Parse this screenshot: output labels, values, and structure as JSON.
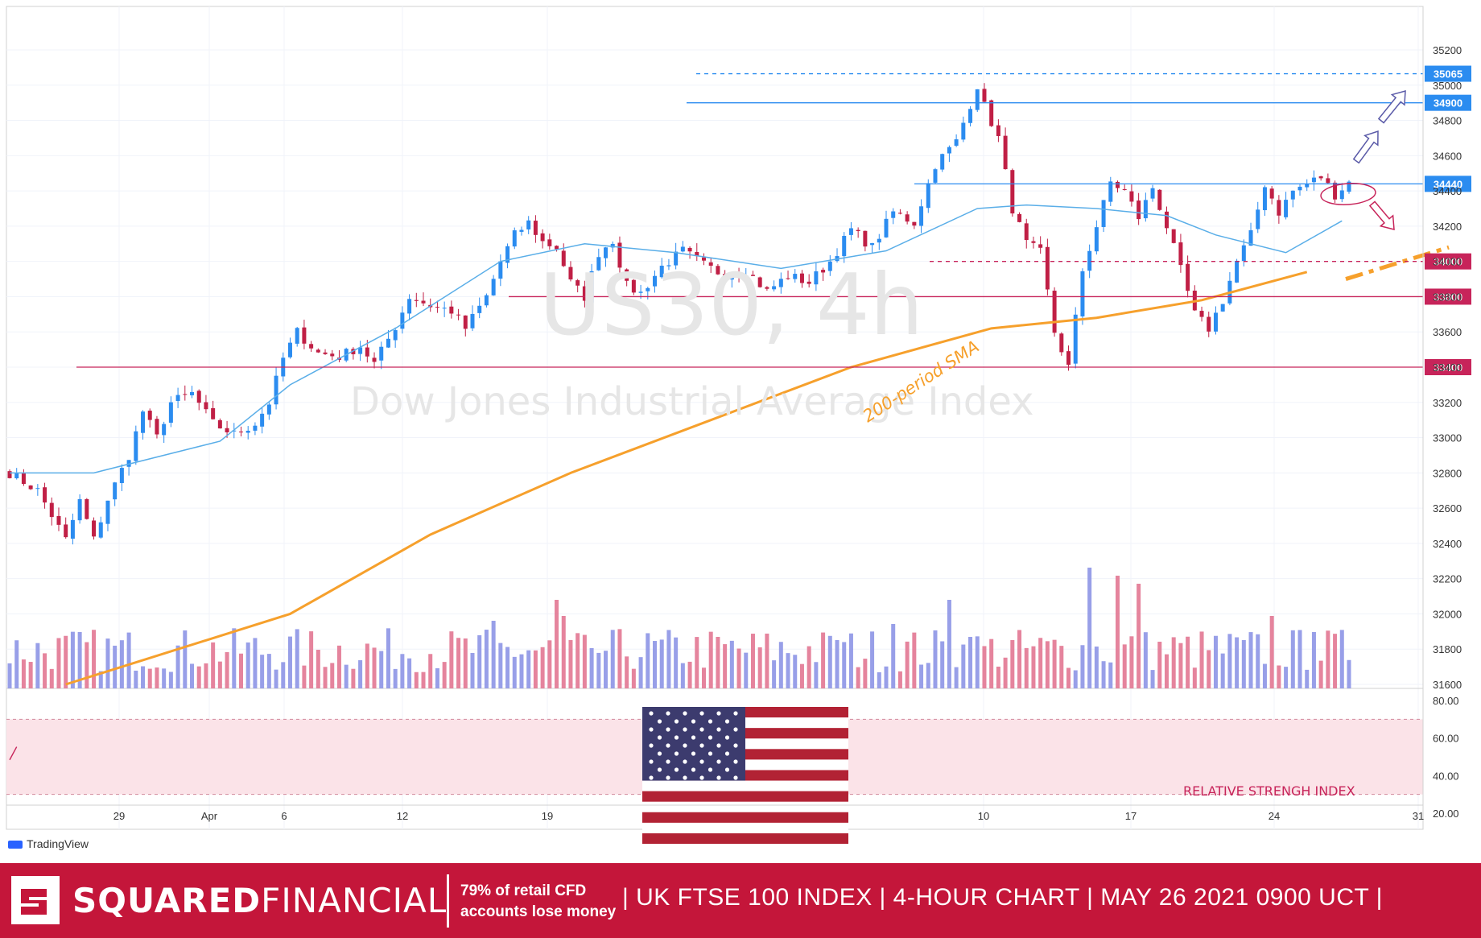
{
  "watermark": {
    "symbol": "US30, 4h",
    "name": "Dow Jones Industrial Average Index"
  },
  "annotations": {
    "sma_label": "200-period SMA",
    "rsi_label": "RELATIVE STRENGH INDEX"
  },
  "branding": {
    "tradingview": "TradingView",
    "company_bold": "SQUARED",
    "company_light": "FINANCIAL",
    "risk_line1": "79% of retail CFD",
    "risk_line2": "accounts lose money",
    "headline": "| UK FTSE 100 INDEX | 4-HOUR CHART | MAY 26  2021  0900 UCT |"
  },
  "colors": {
    "bull": "#2b8cf0",
    "bear": "#c01f45",
    "sma50": "#5aaee8",
    "sma200": "#f6a02c",
    "support": "#c7245a",
    "resistance": "#2b8cf0",
    "footer": "#c4163a"
  },
  "chart_data": {
    "type": "candlestick",
    "y_ticks": [
      "35200",
      "35000",
      "34800",
      "34600",
      "34400",
      "34200",
      "34000",
      "33800",
      "33600",
      "33400",
      "33200",
      "33000",
      "32800",
      "32600",
      "32400",
      "32200",
      "32000",
      "31800",
      "31600"
    ],
    "y_range": [
      31600,
      35250
    ],
    "x_ticks": [
      "29",
      "Apr",
      "6",
      "12",
      "19",
      "10",
      "17",
      "24",
      "31"
    ],
    "levels": [
      {
        "value": 35065,
        "label": "35065",
        "style": "dashed",
        "color": "resistance"
      },
      {
        "value": 34900,
        "label": "34900",
        "style": "solid",
        "color": "resistance"
      },
      {
        "value": 34440,
        "label": "34440",
        "style": "solid",
        "color": "resistance"
      },
      {
        "value": 34000,
        "label": "34000",
        "style": "dashed",
        "color": "support"
      },
      {
        "value": 33800,
        "label": "33800",
        "style": "solid",
        "color": "support"
      },
      {
        "value": 33400,
        "label": "33400",
        "style": "solid",
        "color": "support"
      }
    ],
    "close_path": [
      [
        0,
        32800
      ],
      [
        4,
        32700
      ],
      [
        8,
        32420
      ],
      [
        10,
        32640
      ],
      [
        12,
        32420
      ],
      [
        14,
        32650
      ],
      [
        17,
        32900
      ],
      [
        19,
        33150
      ],
      [
        21,
        33000
      ],
      [
        23,
        33200
      ],
      [
        26,
        33250
      ],
      [
        29,
        33080
      ],
      [
        32,
        33020
      ],
      [
        35,
        33080
      ],
      [
        37,
        33200
      ],
      [
        39,
        33450
      ],
      [
        41,
        33600
      ],
      [
        44,
        33480
      ],
      [
        47,
        33460
      ],
      [
        50,
        33520
      ],
      [
        52,
        33420
      ],
      [
        55,
        33630
      ],
      [
        57,
        33800
      ],
      [
        60,
        33750
      ],
      [
        63,
        33720
      ],
      [
        65,
        33620
      ],
      [
        68,
        33800
      ],
      [
        70,
        34000
      ],
      [
        72,
        34150
      ],
      [
        74,
        34220
      ],
      [
        76,
        34110
      ],
      [
        78,
        34080
      ],
      [
        80,
        33880
      ],
      [
        82,
        33800
      ],
      [
        84,
        34050
      ],
      [
        86,
        34120
      ],
      [
        88,
        33860
      ],
      [
        90,
        33820
      ],
      [
        93,
        33970
      ],
      [
        96,
        34060
      ],
      [
        99,
        33980
      ],
      [
        102,
        33920
      ],
      [
        105,
        33950
      ],
      [
        108,
        33830
      ],
      [
        111,
        33920
      ],
      [
        114,
        33880
      ],
      [
        117,
        34000
      ],
      [
        120,
        34180
      ],
      [
        123,
        34080
      ],
      [
        126,
        34280
      ],
      [
        129,
        34220
      ],
      [
        132,
        34550
      ],
      [
        135,
        34680
      ],
      [
        138,
        35000
      ],
      [
        139,
        34880
      ],
      [
        141,
        34700
      ],
      [
        143,
        34300
      ],
      [
        145,
        34100
      ],
      [
        147,
        34050
      ],
      [
        149,
        33600
      ],
      [
        151,
        33400
      ],
      [
        153,
        33950
      ],
      [
        155,
        34200
      ],
      [
        157,
        34450
      ],
      [
        159,
        34400
      ],
      [
        161,
        34250
      ],
      [
        163,
        34420
      ],
      [
        165,
        34200
      ],
      [
        167,
        33950
      ],
      [
        169,
        33700
      ],
      [
        171,
        33620
      ],
      [
        173,
        33780
      ],
      [
        175,
        34000
      ],
      [
        177,
        34150
      ],
      [
        179,
        34440
      ],
      [
        181,
        34280
      ],
      [
        183,
        34400
      ],
      [
        185,
        34440
      ],
      [
        187,
        34480
      ],
      [
        189,
        34380
      ],
      [
        191,
        34450
      ]
    ],
    "series": [
      {
        "name": "200-period SMA",
        "values": [
          [
            8,
            31600
          ],
          [
            40,
            32000
          ],
          [
            60,
            32450
          ],
          [
            80,
            32800
          ],
          [
            100,
            33100
          ],
          [
            120,
            33400
          ],
          [
            140,
            33620
          ],
          [
            155,
            33680
          ],
          [
            170,
            33780
          ],
          [
            185,
            33940
          ]
        ]
      },
      {
        "name": "SMA50",
        "values": [
          [
            0,
            32800
          ],
          [
            12,
            32800
          ],
          [
            30,
            32980
          ],
          [
            40,
            33300
          ],
          [
            55,
            33620
          ],
          [
            70,
            34000
          ],
          [
            82,
            34100
          ],
          [
            95,
            34050
          ],
          [
            110,
            33960
          ],
          [
            125,
            34060
          ],
          [
            138,
            34300
          ],
          [
            145,
            34320
          ],
          [
            155,
            34300
          ],
          [
            165,
            34260
          ],
          [
            172,
            34150
          ],
          [
            182,
            34050
          ],
          [
            190,
            34230
          ]
        ]
      }
    ],
    "rsi": {
      "range": [
        20,
        80
      ],
      "bounds": [
        70,
        30
      ],
      "ticks": [
        "80.00",
        "60.00",
        "40.00",
        "20.00"
      ]
    }
  }
}
